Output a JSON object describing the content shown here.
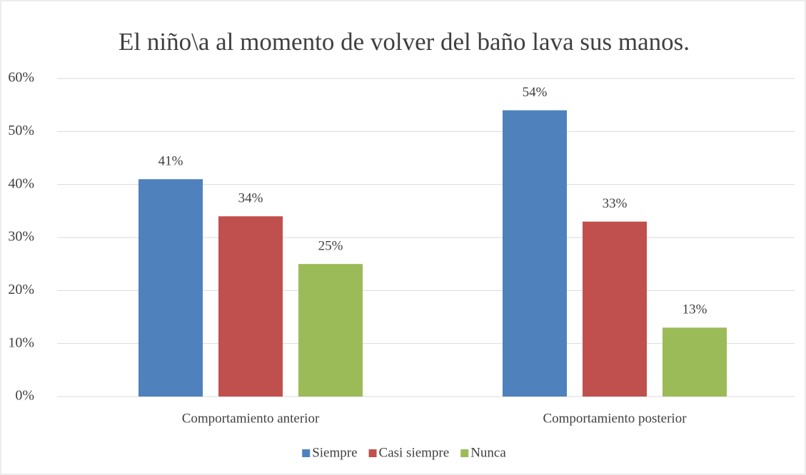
{
  "chart_data": {
    "type": "bar",
    "title": "El niño\\a al momento de volver del baño lava sus manos.",
    "categories": [
      "Comportamiento anterior",
      "Comportamiento posterior"
    ],
    "series": [
      {
        "name": "Siempre",
        "color": "#4f81bd",
        "values": [
          41,
          54
        ],
        "value_labels": [
          "41%",
          "54%"
        ]
      },
      {
        "name": "Casi siempre",
        "color": "#c0504d",
        "values": [
          34,
          33
        ],
        "value_labels": [
          "34%",
          "33%"
        ]
      },
      {
        "name": "Nunca",
        "color": "#9bbb59",
        "values": [
          25,
          13
        ],
        "value_labels": [
          "25%",
          "13%"
        ]
      }
    ],
    "ylim": [
      0,
      60
    ],
    "yticks": [
      {
        "value": 0,
        "label": "0%"
      },
      {
        "value": 10,
        "label": "10%"
      },
      {
        "value": 20,
        "label": "20%"
      },
      {
        "value": 30,
        "label": "30%"
      },
      {
        "value": 40,
        "label": "40%"
      },
      {
        "value": 50,
        "label": "50%"
      },
      {
        "value": 60,
        "label": "60%"
      }
    ],
    "grid": true,
    "legend": "bottom"
  }
}
